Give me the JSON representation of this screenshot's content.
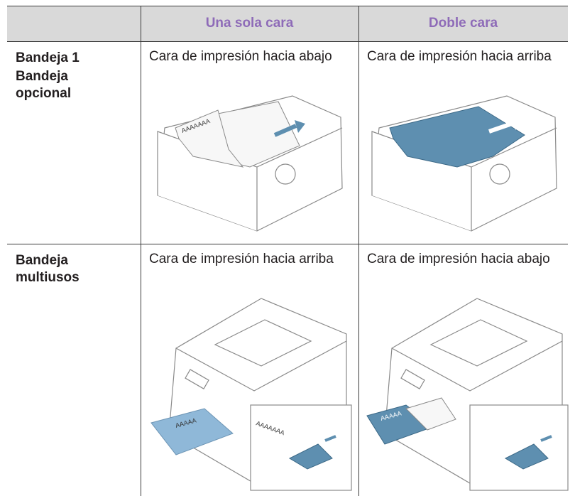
{
  "table": {
    "headers": [
      "Una sola cara",
      "Doble cara"
    ],
    "rows": [
      {
        "labels": [
          "Bandeja 1",
          "Bandeja opcional"
        ],
        "cells": [
          "Cara de impresión hacia abajo",
          "Cara de impresión hacia arriba"
        ]
      },
      {
        "labels": [
          "Bandeja multiusos"
        ],
        "cells": [
          "Cara de impresión hacia arriba",
          "Cara de impresión hacia abajo"
        ]
      }
    ]
  },
  "illustrations": {
    "tray_single_paper": "AAAAAAA",
    "mp_single_paper": "AAAAA",
    "mp_single_zoom": "AAAAAAA",
    "mp_duplex_paper": "AAAAA"
  }
}
